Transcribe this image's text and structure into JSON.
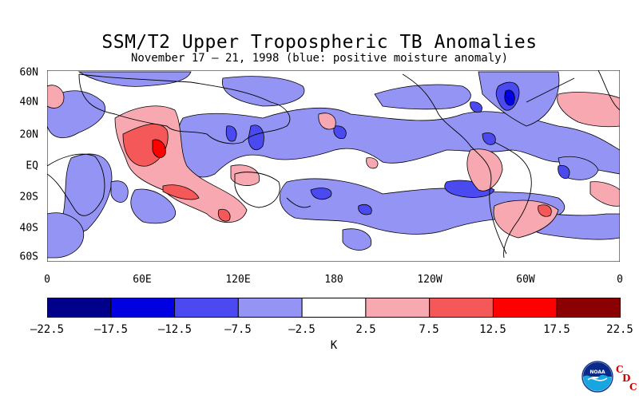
{
  "title": "SSM/T2 Upper Tropospheric TB Anomalies",
  "subtitle": "November 17 – 21, 1998 (blue: positive moisture anomaly)",
  "lat_labels": [
    "60N",
    "40N",
    "20N",
    "EQ",
    "20S",
    "40S",
    "60S"
  ],
  "lon_labels": [
    "0",
    "60E",
    "120E",
    "180",
    "120W",
    "60W",
    "0"
  ],
  "colorbar": {
    "ticks": [
      "–22.5",
      "–17.5",
      "–12.5",
      "–7.5",
      "–2.5",
      "2.5",
      "7.5",
      "12.5",
      "17.5",
      "22.5"
    ],
    "colors": [
      "#00008b",
      "#0000e0",
      "#4a4af0",
      "#9494f4",
      "#ffffff",
      "#f8a8b0",
      "#f45858",
      "#ff0000",
      "#8b0000"
    ],
    "units": "K"
  },
  "logo": {
    "name": "NOAA",
    "letters": [
      "C",
      "D",
      "C"
    ]
  }
}
